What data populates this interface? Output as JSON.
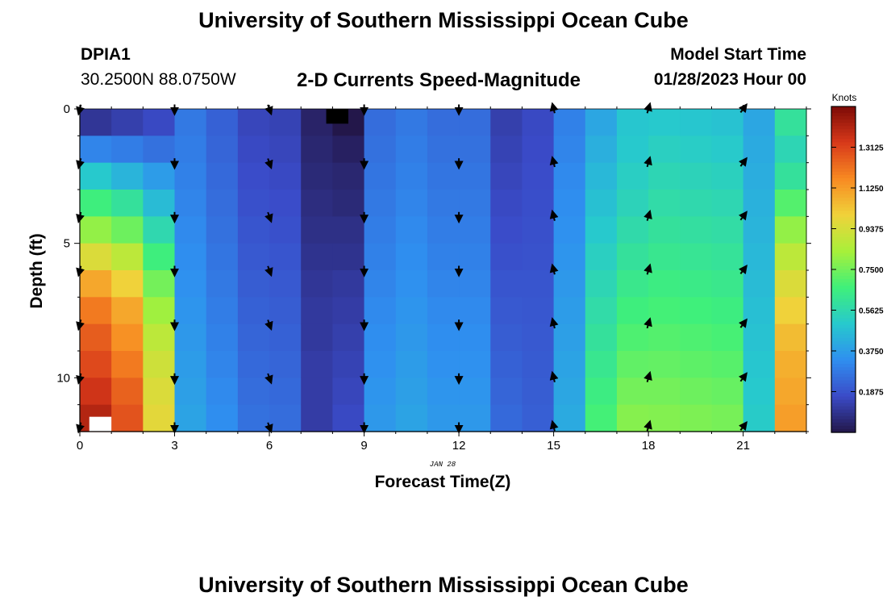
{
  "header": {
    "title": "University of Southern Mississippi Ocean Cube",
    "station": "DPIA1",
    "coords": "30.2500N  88.0750W",
    "subtitle": "2-D Currents Speed-Magnitude",
    "start_label": "Model Start Time",
    "start_value": "01/28/2023 Hour 00"
  },
  "footer": {
    "title": "University of Southern Mississippi Ocean Cube"
  },
  "chart_data": {
    "type": "heatmap",
    "xlabel": "Forecast Time(Z)",
    "ylabel": "Depth (ft)",
    "date_label": "JAN 28",
    "xticks": [
      "0",
      "3",
      "6",
      "9",
      "12",
      "15",
      "18",
      "21"
    ],
    "yticks": [
      "0",
      "5",
      "10"
    ],
    "xlim": [
      0,
      23
    ],
    "ylim": [
      0,
      12
    ],
    "colorbar": {
      "label": "Knots",
      "ticks": [
        "1.3125",
        "1.1250",
        "0.9375",
        "0.7500",
        "0.5625",
        "0.3750",
        "0.1875"
      ],
      "range": [
        0,
        1.5
      ],
      "colors": [
        "#23174a",
        "#3a4bc8",
        "#2f8ff0",
        "#27c9cd",
        "#3ff07a",
        "#a8f03a",
        "#f0d23a",
        "#f88a22",
        "#d8391a",
        "#7c0a06"
      ]
    },
    "rows": 12,
    "cols": 23,
    "profiles": {
      "depth_ft": [
        0,
        1,
        2,
        3,
        4,
        5,
        6,
        7,
        8,
        9,
        10,
        11
      ],
      "hour_0": [
        0.1,
        0.31,
        0.5,
        0.66,
        0.8,
        0.95,
        1.1,
        1.2,
        1.26,
        1.3,
        1.35,
        1.4
      ],
      "hour_1": [
        0.13,
        0.29,
        0.44,
        0.6,
        0.74,
        0.88,
        1.0,
        1.1,
        1.15,
        1.2,
        1.25,
        1.28
      ],
      "hour_2": [
        0.16,
        0.26,
        0.37,
        0.46,
        0.56,
        0.66,
        0.75,
        0.82,
        0.88,
        0.92,
        0.95,
        0.97
      ],
      "hour_7": [
        0.04,
        0.05,
        0.06,
        0.07,
        0.08,
        0.09,
        0.1,
        0.11,
        0.11,
        0.12,
        0.12,
        0.12
      ],
      "hour_8": [
        0.0,
        0.03,
        0.05,
        0.06,
        0.08,
        0.09,
        0.11,
        0.12,
        0.13,
        0.14,
        0.15,
        0.16
      ],
      "hour_17": [
        0.49,
        0.5,
        0.52,
        0.54,
        0.57,
        0.6,
        0.63,
        0.66,
        0.69,
        0.72,
        0.75,
        0.78
      ],
      "hour_22": [
        0.6,
        0.55,
        0.6,
        0.7,
        0.8,
        0.88,
        0.95,
        1.0,
        1.05,
        1.08,
        1.1,
        1.12
      ]
    },
    "arrows": {
      "hours": [
        0,
        3,
        6,
        9,
        12,
        15,
        18,
        21
      ],
      "depths_ft": [
        0,
        2,
        4,
        6,
        8,
        10,
        12
      ],
      "direction": {
        "0": "south-southwest",
        "3": "south",
        "6": "south-southeast",
        "9": "south",
        "12": "south",
        "15": "north-northwest",
        "18": "north-northeast",
        "21": "northeast"
      }
    }
  }
}
